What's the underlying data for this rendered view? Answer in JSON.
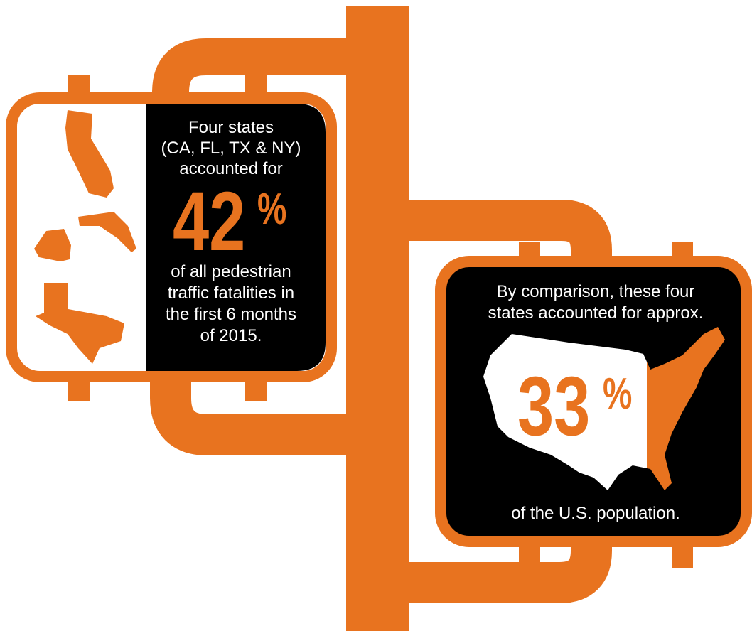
{
  "left_panel": {
    "lines_top": [
      "Four states",
      "(CA, FL, TX & NY)",
      "accounted for"
    ],
    "figure": "42",
    "figure_unit": "%",
    "lines_bottom": [
      "of all pedestrian",
      "traffic fatalities in",
      "the first 6 months",
      "of 2015."
    ]
  },
  "right_panel": {
    "lines_top": [
      "By comparison, these four",
      "states accounted for approx."
    ],
    "figure": "33",
    "figure_unit": "%",
    "line_bottom": "of the U.S. population."
  }
}
